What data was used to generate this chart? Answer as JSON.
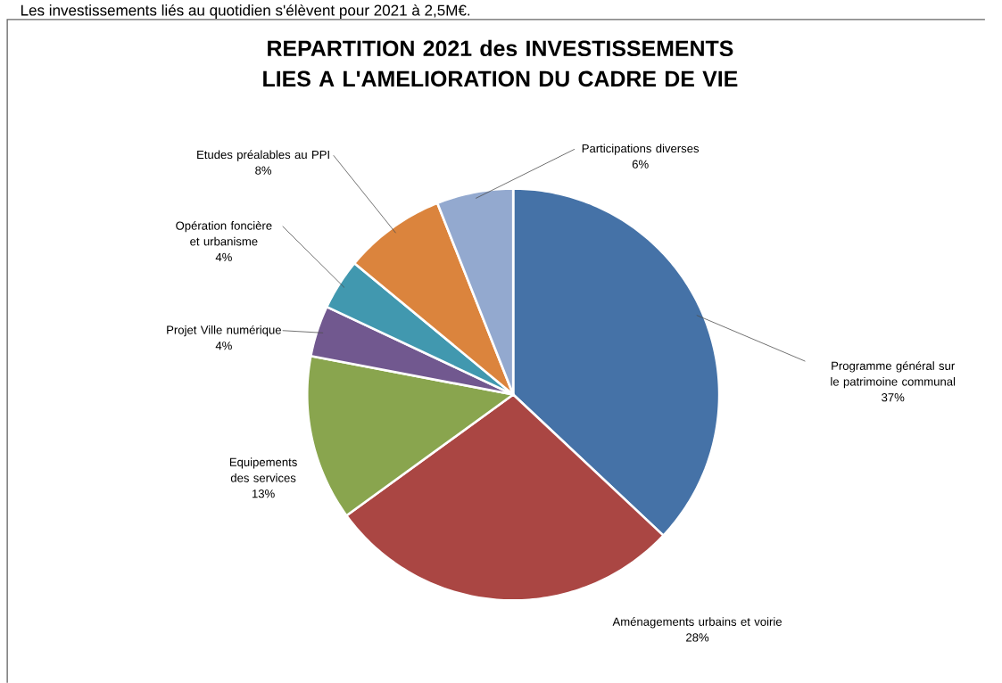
{
  "chart_data": {
    "type": "pie",
    "title": "REPARTITION 2021 des INVESTISSEMENTS LIES A L'AMELIORATION DU CADRE DE VIE",
    "annotations": [
      "Les investissements liés au quotidien s'élèvent pour 2021 à 2,5M€."
    ],
    "categories": [
      "Programme général sur le patrimoine communal",
      "Aménagements urbains et voirie",
      "Equipements des services",
      "Projet Ville numérique",
      "Opération foncière et urbanisme",
      "Etudes préalables au PPI",
      "Participations diverses"
    ],
    "values": [
      37,
      28,
      13,
      4,
      4,
      8,
      6
    ],
    "value_labels": [
      "37%",
      "28%",
      "13%",
      "4%",
      "4%",
      "8%",
      "6%"
    ],
    "colors": [
      "#4572a7",
      "#aa4643",
      "#89a54e",
      "#71588f",
      "#4198af",
      "#db843d",
      "#93a9cf"
    ]
  }
}
